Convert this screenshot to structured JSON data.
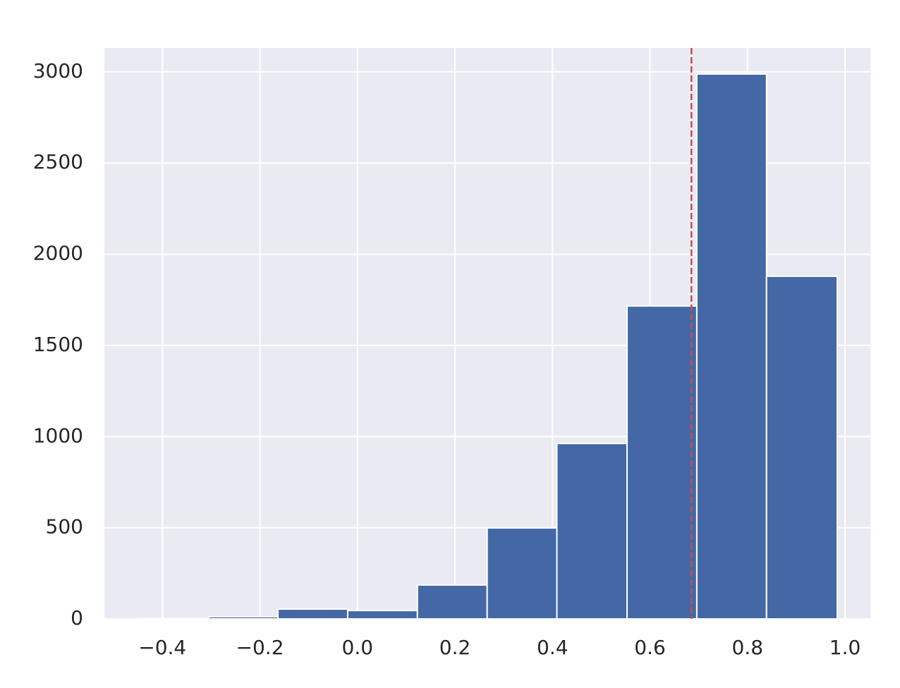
{
  "chart_data": {
    "type": "histogram",
    "bins": [
      -0.447,
      -0.305,
      -0.163,
      -0.02,
      0.123,
      0.266,
      0.409,
      0.553,
      0.696,
      0.839,
      0.984
    ],
    "values": [
      2,
      12,
      54,
      46,
      186,
      499,
      962,
      1716,
      2988,
      1879
    ],
    "color": "#4468a6",
    "xlim": [
      -0.519,
      1.052
    ],
    "ylim": [
      0,
      3131
    ],
    "xticks": [
      {
        "value": -0.4,
        "label": "−0.4"
      },
      {
        "value": -0.2,
        "label": "−0.2"
      },
      {
        "value": 0,
        "label": "0.0"
      },
      0.2,
      0.4,
      0.6,
      0.8,
      {
        "value": 1,
        "label": "1.0"
      }
    ],
    "yticks": [
      0,
      500,
      1000,
      1500,
      2000,
      2500,
      3000
    ],
    "grid": true,
    "vline": {
      "x": 0.685,
      "color": "#c44e52",
      "style": "dashed"
    }
  }
}
